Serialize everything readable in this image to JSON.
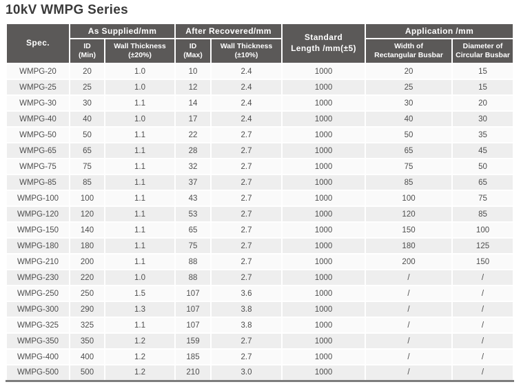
{
  "page": {
    "title": "10kV WMPG Series"
  },
  "colors": {
    "header_bg": "#5b5958",
    "header_text": "#ffffff",
    "row_odd_bg": "#fafafa",
    "row_even_bg": "#eeeeee",
    "cell_text": "#4d4d4d",
    "title_text": "#3a3a3a",
    "grid_line": "#ffffff",
    "table_bottom_border": "#7c7c7c"
  },
  "table": {
    "header": {
      "spec": "Spec.",
      "as_supplied": {
        "label": "As Supplied/mm",
        "id_min": {
          "line1": "ID",
          "line2": "(Min)"
        },
        "wall_thickness": {
          "line1": "Wall Thickness",
          "line2": "(±20%)"
        }
      },
      "after_recovered": {
        "label": "After Recovered/mm",
        "id_max": {
          "line1": "ID",
          "line2": "(Max)"
        },
        "wall_thickness": {
          "line1": "Wall Thickness",
          "line2": "(±10%)"
        }
      },
      "standard_length": {
        "line1": "Standard",
        "line2": "Length /mm(±5)"
      },
      "application": {
        "label": "Application /mm",
        "width_rect": {
          "line1": "Width of",
          "line2": "Rectangular Busbar"
        },
        "dia_circ": {
          "line1": "Diameter of",
          "line2": "Circular Busbar"
        }
      }
    },
    "columns": [
      "spec",
      "id_min",
      "wall_thickness_20",
      "id_max",
      "wall_thickness_10",
      "standard_length",
      "width_rectangular_busbar",
      "diameter_circular_busbar"
    ],
    "rows": [
      [
        "WMPG-20",
        "20",
        "1.0",
        "10",
        "2.4",
        "1000",
        "20",
        "15"
      ],
      [
        "WMPG-25",
        "25",
        "1.0",
        "12",
        "2.4",
        "1000",
        "25",
        "15"
      ],
      [
        "WMPG-30",
        "30",
        "1.1",
        "14",
        "2.4",
        "1000",
        "30",
        "20"
      ],
      [
        "WMPG-40",
        "40",
        "1.0",
        "17",
        "2.4",
        "1000",
        "40",
        "30"
      ],
      [
        "WMPG-50",
        "50",
        "1.1",
        "22",
        "2.7",
        "1000",
        "50",
        "35"
      ],
      [
        "WMPG-65",
        "65",
        "1.1",
        "28",
        "2.7",
        "1000",
        "65",
        "45"
      ],
      [
        "WMPG-75",
        "75",
        "1.1",
        "32",
        "2.7",
        "1000",
        "75",
        "50"
      ],
      [
        "WMPG-85",
        "85",
        "1.1",
        "37",
        "2.7",
        "1000",
        "85",
        "65"
      ],
      [
        "WMPG-100",
        "100",
        "1.1",
        "43",
        "2.7",
        "1000",
        "100",
        "75"
      ],
      [
        "WMPG-120",
        "120",
        "1.1",
        "53",
        "2.7",
        "1000",
        "120",
        "85"
      ],
      [
        "WMPG-150",
        "140",
        "1.1",
        "65",
        "2.7",
        "1000",
        "150",
        "100"
      ],
      [
        "WMPG-180",
        "180",
        "1.1",
        "75",
        "2.7",
        "1000",
        "180",
        "125"
      ],
      [
        "WMPG-210",
        "200",
        "1.1",
        "88",
        "2.7",
        "1000",
        "200",
        "150"
      ],
      [
        "WMPG-230",
        "220",
        "1.0",
        "88",
        "2.7",
        "1000",
        "/",
        "/"
      ],
      [
        "WMPG-250",
        "250",
        "1.5",
        "107",
        "3.6",
        "1000",
        "/",
        "/"
      ],
      [
        "WMPG-300",
        "290",
        "1.3",
        "107",
        "3.8",
        "1000",
        "/",
        "/"
      ],
      [
        "WMPG-325",
        "325",
        "1.1",
        "107",
        "3.8",
        "1000",
        "/",
        "/"
      ],
      [
        "WMPG-350",
        "350",
        "1.2",
        "159",
        "2.7",
        "1000",
        "/",
        "/"
      ],
      [
        "WMPG-400",
        "400",
        "1.2",
        "185",
        "2.7",
        "1000",
        "/",
        "/"
      ],
      [
        "WMPG-500",
        "500",
        "1.2",
        "210",
        "3.0",
        "1000",
        "/",
        "/"
      ]
    ]
  }
}
